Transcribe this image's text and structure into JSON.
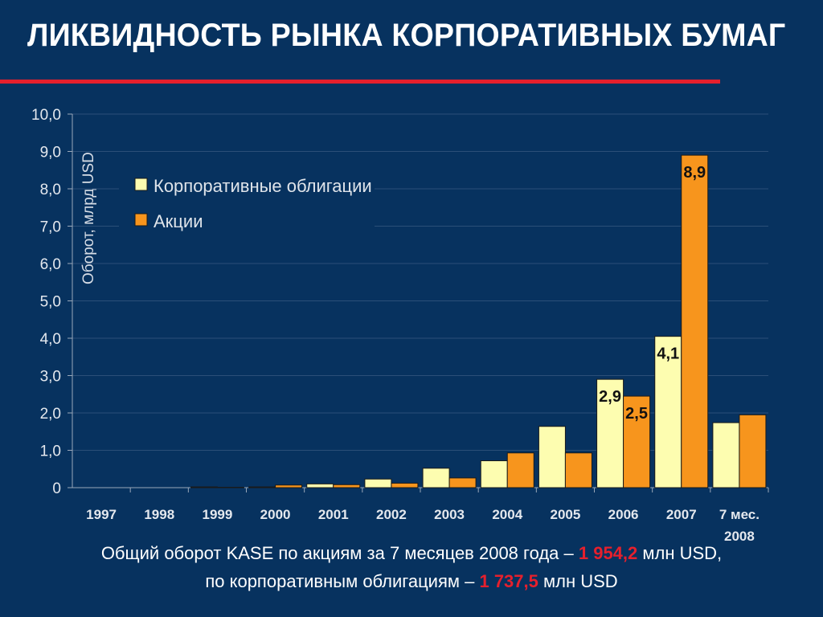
{
  "title": "ЛИКВИДНОСТЬ РЫНКА КОРПОРАТИВНЫХ БУМАГ",
  "colors": {
    "background": "#07325f",
    "accent_rule": "#e5202d",
    "bonds": "#fdfdb0",
    "stocks": "#f7951d",
    "highlight": "#e5202d"
  },
  "chart_data": {
    "type": "bar",
    "ylabel": "Оборот, млрд USD",
    "xlabel": "",
    "ylim": [
      0,
      10
    ],
    "y_ticks": [
      "0",
      "1,0",
      "2,0",
      "3,0",
      "4,0",
      "5,0",
      "6,0",
      "7,0",
      "8,0",
      "9,0",
      "10,0"
    ],
    "grid": true,
    "legend_position": "top-left",
    "categories": [
      "1997",
      "1998",
      "1999",
      "2000",
      "2001",
      "2002",
      "2003",
      "2004",
      "2005",
      "2006",
      "2007",
      "7 мес. 2008"
    ],
    "series": [
      {
        "name": "Корпоративные облигации",
        "color": "#fdfdb0",
        "values": [
          0,
          0,
          0.02,
          0.02,
          0.1,
          0.23,
          0.52,
          0.72,
          1.64,
          2.9,
          4.05,
          1.74
        ],
        "data_labels": [
          "",
          "",
          "",
          "",
          "",
          "",
          "",
          "",
          "",
          "2,9",
          "4,1",
          ""
        ]
      },
      {
        "name": "Акции",
        "color": "#f7951d",
        "values": [
          0,
          0,
          0.01,
          0.07,
          0.08,
          0.12,
          0.26,
          0.93,
          0.93,
          2.45,
          8.9,
          1.95
        ],
        "data_labels": [
          "",
          "",
          "",
          "",
          "",
          "",
          "",
          "",
          "",
          "2,5",
          "8,9",
          ""
        ]
      }
    ]
  },
  "footnote": {
    "line1_text": "Общий оборот KASE по акциям за 7 месяцев 2008 года – ",
    "line1_value": "1 954,2",
    "line1_unit": " млн USD,",
    "line2_text": "по корпоративным облигациям – ",
    "line2_value": "1 737,5",
    "line2_unit": " млн USD"
  }
}
